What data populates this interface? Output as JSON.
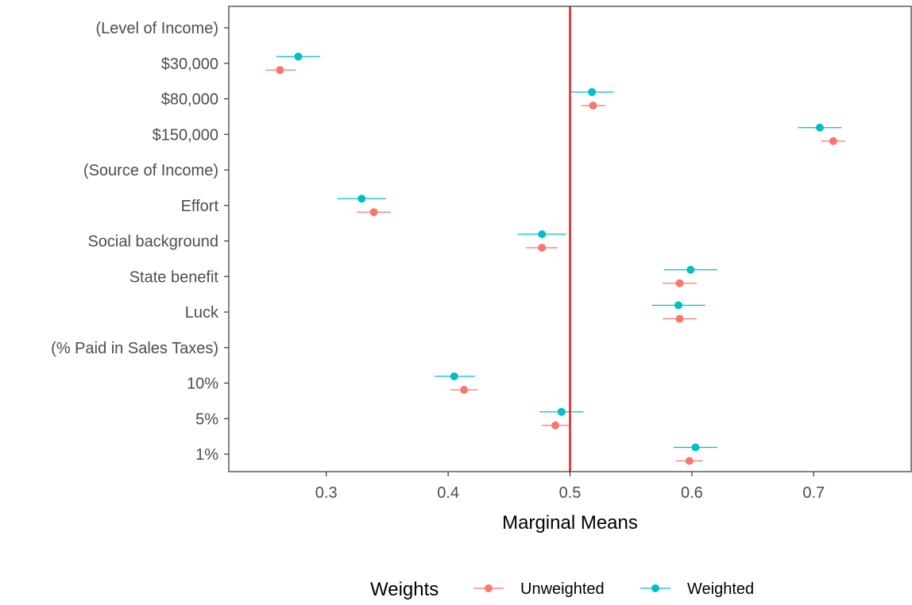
{
  "chart_data": {
    "type": "scatter",
    "title": "",
    "xlabel": "Marginal Means",
    "ylabel": "",
    "xlim": [
      0.22,
      0.78
    ],
    "x_ticks": [
      0.3,
      0.4,
      0.5,
      0.6,
      0.7
    ],
    "x_tick_labels": [
      "0.3",
      "0.4",
      "0.5",
      "0.6",
      "0.7"
    ],
    "reference_line": {
      "x": 0.5,
      "color": "#e41a1c"
    },
    "grid": false,
    "categories": [
      "(Level of Income)",
      "$30,000",
      "$80,000",
      "$150,000",
      "(Source of Income)",
      "Effort",
      "Social background",
      "State benefit",
      "Luck",
      "(% Paid in Sales Taxes)",
      "10%",
      "5%",
      "1%"
    ],
    "legend": {
      "title": "Weights",
      "position": "bottom",
      "entries": [
        "Unweighted",
        "Weighted"
      ]
    },
    "series": [
      {
        "name": "Unweighted",
        "color": "#f8766d",
        "points": [
          {
            "category": "$30,000",
            "estimate": 0.262,
            "lower": 0.25,
            "upper": 0.275
          },
          {
            "category": "$80,000",
            "estimate": 0.519,
            "lower": 0.509,
            "upper": 0.529
          },
          {
            "category": "$150,000",
            "estimate": 0.716,
            "lower": 0.706,
            "upper": 0.726
          },
          {
            "category": "Effort",
            "estimate": 0.339,
            "lower": 0.325,
            "upper": 0.353
          },
          {
            "category": "Social background",
            "estimate": 0.477,
            "lower": 0.464,
            "upper": 0.49
          },
          {
            "category": "State benefit",
            "estimate": 0.59,
            "lower": 0.576,
            "upper": 0.604
          },
          {
            "category": "Luck",
            "estimate": 0.59,
            "lower": 0.576,
            "upper": 0.604
          },
          {
            "category": "10%",
            "estimate": 0.413,
            "lower": 0.402,
            "upper": 0.424
          },
          {
            "category": "5%",
            "estimate": 0.488,
            "lower": 0.477,
            "upper": 0.499
          },
          {
            "category": "1%",
            "estimate": 0.598,
            "lower": 0.587,
            "upper": 0.609
          }
        ]
      },
      {
        "name": "Weighted",
        "color": "#00bfc4",
        "points": [
          {
            "category": "$30,000",
            "estimate": 0.277,
            "lower": 0.259,
            "upper": 0.295
          },
          {
            "category": "$80,000",
            "estimate": 0.518,
            "lower": 0.501,
            "upper": 0.536
          },
          {
            "category": "$150,000",
            "estimate": 0.705,
            "lower": 0.687,
            "upper": 0.723
          },
          {
            "category": "Effort",
            "estimate": 0.329,
            "lower": 0.309,
            "upper": 0.349
          },
          {
            "category": "Social background",
            "estimate": 0.477,
            "lower": 0.457,
            "upper": 0.497
          },
          {
            "category": "State benefit",
            "estimate": 0.599,
            "lower": 0.577,
            "upper": 0.621
          },
          {
            "category": "Luck",
            "estimate": 0.589,
            "lower": 0.567,
            "upper": 0.611
          },
          {
            "category": "10%",
            "estimate": 0.405,
            "lower": 0.389,
            "upper": 0.422
          },
          {
            "category": "5%",
            "estimate": 0.493,
            "lower": 0.475,
            "upper": 0.511
          },
          {
            "category": "1%",
            "estimate": 0.603,
            "lower": 0.585,
            "upper": 0.621
          }
        ]
      }
    ]
  }
}
